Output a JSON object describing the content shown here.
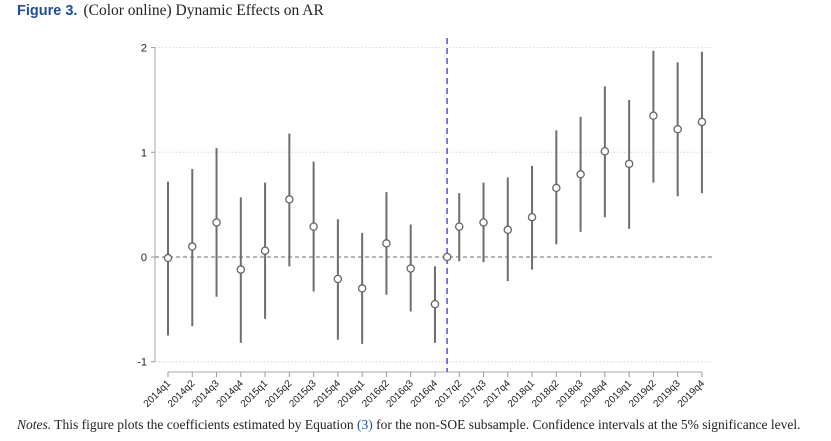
{
  "figure": {
    "label": "Figure 3.",
    "title": "(Color online) Dynamic Effects on AR"
  },
  "notes": {
    "lead": "Notes.",
    "text_before": "This figure plots the coefficients estimated by Equation ",
    "equation_ref": "(3)",
    "text_after": " for the non-SOE subsample. Confidence intervals at the 5% significance level."
  },
  "chart_data": {
    "type": "scatter",
    "subtype": "coefficient plot with confidence intervals",
    "title": "",
    "xlabel": "",
    "ylabel": "",
    "ylim": [
      -1,
      2
    ],
    "yticks": [
      -1,
      0,
      1,
      2
    ],
    "grid": "dotted horizontal at y ticks",
    "reference_line_y": 0,
    "event_line": {
      "between": [
        "2016q4",
        "2017q2"
      ],
      "period": "2017q1",
      "color": "#6a6af0",
      "style": "dashed"
    },
    "base_point": {
      "period": "2017q1",
      "estimate": 0
    },
    "categories": [
      "2014q1",
      "2014q2",
      "2014q3",
      "2014q4",
      "2015q1",
      "2015q2",
      "2015q3",
      "2015q4",
      "2016q1",
      "2016q2",
      "2016q3",
      "2016q4",
      "2017q2",
      "2017q3",
      "2017q4",
      "2018q1",
      "2018q2",
      "2018q3",
      "2018q4",
      "2019q1",
      "2019q2",
      "2019q3",
      "2019q4"
    ],
    "estimates": [
      -0.01,
      0.1,
      0.33,
      -0.12,
      0.06,
      0.55,
      0.29,
      -0.21,
      -0.3,
      0.13,
      -0.11,
      -0.45,
      0.29,
      0.33,
      0.26,
      0.38,
      0.66,
      0.79,
      1.01,
      0.89,
      1.35,
      1.22,
      1.29
    ],
    "ci_upper": [
      0.72,
      0.84,
      1.04,
      0.57,
      0.71,
      1.18,
      0.91,
      0.36,
      0.23,
      0.62,
      0.31,
      -0.09,
      0.61,
      0.71,
      0.76,
      0.87,
      1.21,
      1.34,
      1.63,
      1.5,
      1.97,
      1.86,
      1.96
    ],
    "ci_lower": [
      -0.75,
      -0.66,
      -0.38,
      -0.82,
      -0.59,
      -0.09,
      -0.33,
      -0.79,
      -0.83,
      -0.36,
      -0.52,
      -0.82,
      -0.04,
      -0.05,
      -0.23,
      -0.12,
      0.12,
      0.24,
      0.38,
      0.27,
      0.71,
      0.58,
      0.61
    ],
    "colors": {
      "marker": "#666666",
      "ci": "#6e6e6e",
      "event_line": "#6a6af0",
      "zero_line": "#8a8a8a"
    }
  }
}
